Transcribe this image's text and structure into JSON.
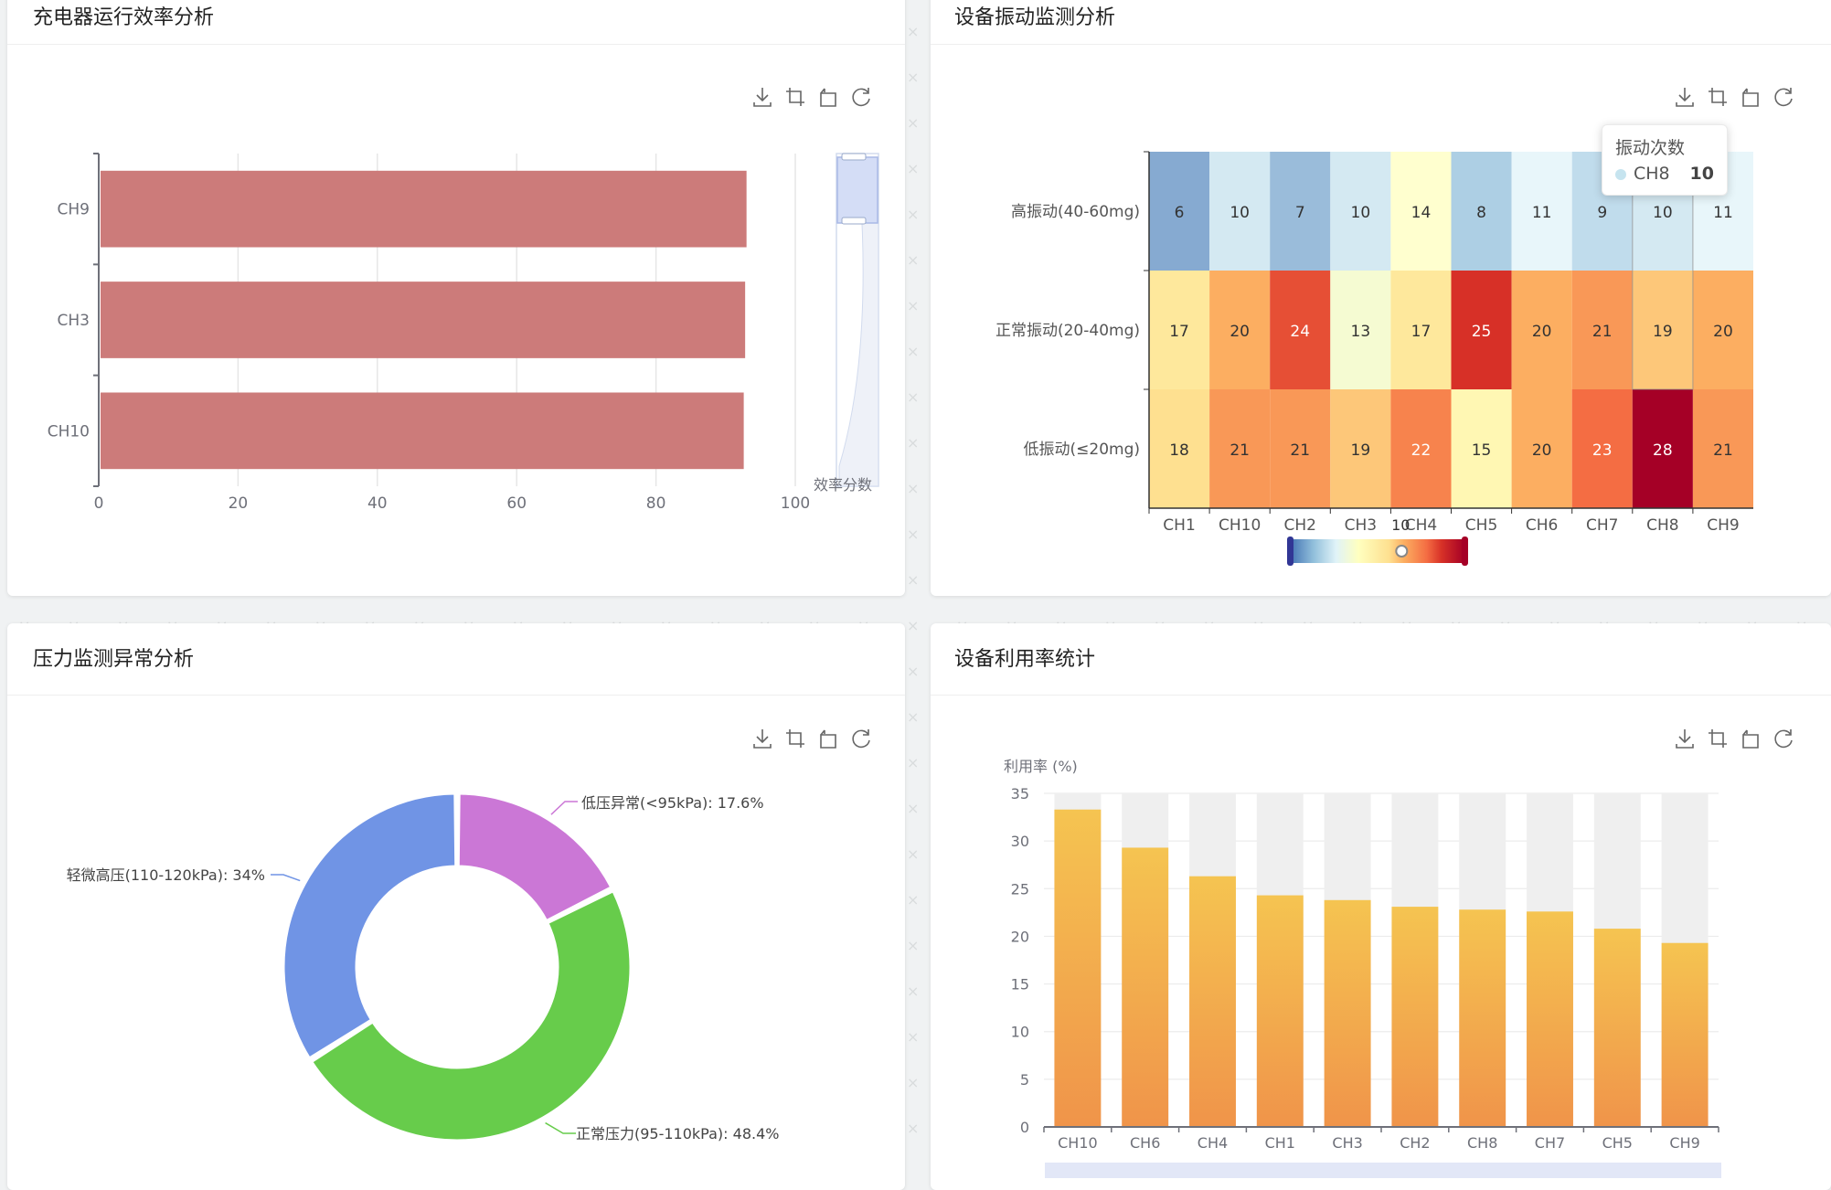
{
  "icons": {
    "download": "download-icon",
    "zoom": "zoom-icon",
    "zoom_reset": "zoom-reset-icon",
    "restore": "restore-icon"
  },
  "panels": {
    "efficiency": {
      "title": "充电器运行效率分析"
    },
    "vibration": {
      "title": "设备振动监测分析"
    },
    "pressure": {
      "title": "压力监测异常分析"
    },
    "utilization": {
      "title": "设备利用率统计"
    }
  },
  "tooltip": {
    "title": "振动次数",
    "name": "CH8",
    "value": "10",
    "color": "#c6e4ef"
  },
  "chart_data": [
    {
      "id": "efficiency",
      "type": "bar",
      "orientation": "horizontal",
      "title": "充电器运行效率分析",
      "categories": [
        "CH9",
        "CH3",
        "CH10"
      ],
      "values": [
        93,
        92.8,
        92.6
      ],
      "xlim": [
        0,
        100
      ],
      "xticks": [
        0,
        20,
        40,
        60,
        80,
        100
      ],
      "bar_color": "#cc7b7a",
      "datazoom_label": "效率分数",
      "grid": true
    },
    {
      "id": "vibration",
      "type": "heatmap",
      "title": "设备振动监测分析",
      "x": [
        "CH1",
        "CH10",
        "CH2",
        "CH3",
        "CH4",
        "CH5",
        "CH6",
        "CH7",
        "CH8",
        "CH9"
      ],
      "y": [
        "高振动(40-60mg)",
        "正常振动(20-40mg)",
        "低振动(≤20mg)"
      ],
      "values": [
        [
          6,
          10,
          7,
          10,
          14,
          8,
          11,
          9,
          10,
          11
        ],
        [
          17,
          20,
          24,
          13,
          17,
          25,
          20,
          21,
          19,
          20
        ],
        [
          18,
          21,
          21,
          19,
          22,
          15,
          20,
          23,
          28,
          21
        ]
      ],
      "visualmap_range": [
        5,
        28
      ],
      "visualmap_label": "10",
      "highlight": {
        "x": "CH8",
        "y": "高振动(40-60mg)"
      }
    },
    {
      "id": "pressure",
      "type": "pie",
      "title": "压力监测异常分析",
      "donut": true,
      "slices": [
        {
          "label": "低压异常(<95kPa): 17.6%",
          "value": 17.6,
          "color": "#cb77d6"
        },
        {
          "label": "正常压力(95-110kPa): 48.4%",
          "value": 48.4,
          "color": "#67cc4b"
        },
        {
          "label": "轻微高压(110-120kPa): 34%",
          "value": 34,
          "color": "#7094e5"
        }
      ]
    },
    {
      "id": "utilization",
      "type": "bar",
      "title": "设备利用率统计",
      "ylabel": "利用率 (%)",
      "categories": [
        "CH10",
        "CH6",
        "CH4",
        "CH1",
        "CH3",
        "CH2",
        "CH8",
        "CH7",
        "CH5",
        "CH9"
      ],
      "values": [
        33.3,
        29.3,
        26.3,
        24.3,
        23.8,
        23.1,
        22.8,
        22.6,
        20.8,
        19.3
      ],
      "ylim": [
        0,
        35
      ],
      "yticks": [
        0,
        5,
        10,
        15,
        20,
        25,
        30,
        35
      ],
      "background_bars": true,
      "gradient": [
        "#f5c451",
        "#f0944a"
      ],
      "grid": true
    }
  ]
}
